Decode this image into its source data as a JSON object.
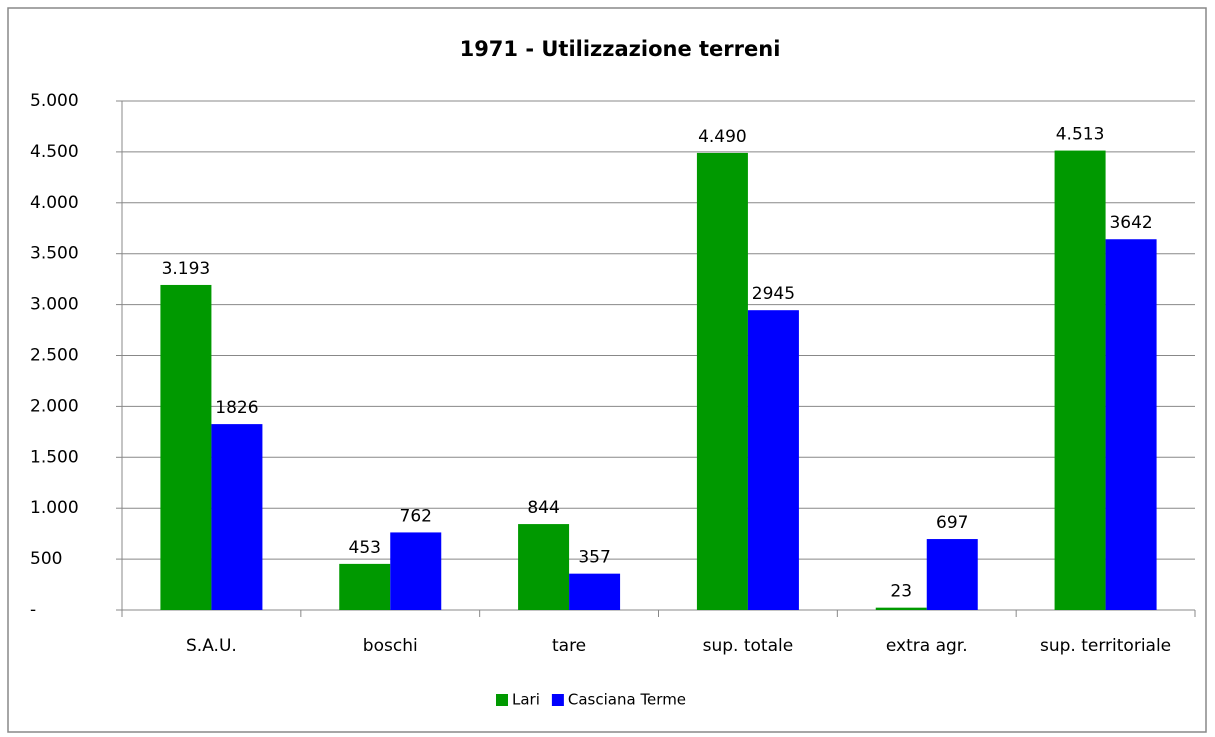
{
  "chart_data": {
    "type": "bar",
    "title": "1971 -  Utilizzazione terreni",
    "categories": [
      "S.A.U.",
      "boschi",
      "tare",
      "sup. totale",
      "extra agr.",
      "sup. territoriale"
    ],
    "series": [
      {
        "name": "Lari",
        "color": "#009900",
        "values": [
          3193,
          453,
          844,
          4490,
          23,
          4513
        ],
        "value_labels": [
          "3.193",
          "453",
          "844",
          "4.490",
          "23",
          "4.513"
        ]
      },
      {
        "name": "Casciana Terme",
        "color": "#0000ff",
        "values": [
          1826,
          762,
          357,
          2945,
          697,
          3642
        ]
      }
    ],
    "ylim": [
      0,
      5000
    ],
    "yticks": [
      {
        "value": 0,
        "label": "-"
      },
      500,
      {
        "value": 1000,
        "label": "1.000"
      },
      {
        "value": 1500,
        "label": "1.500"
      },
      {
        "value": 2000,
        "label": "2.000"
      },
      {
        "value": 2500,
        "label": "2.500"
      },
      {
        "value": 3000,
        "label": "3.000"
      },
      {
        "value": 3500,
        "label": "3.500"
      },
      {
        "value": 4000,
        "label": "4.000"
      },
      {
        "value": 4500,
        "label": "4.500"
      },
      {
        "value": 5000,
        "label": "5.000"
      }
    ],
    "grid": true,
    "legend": "bottom"
  }
}
